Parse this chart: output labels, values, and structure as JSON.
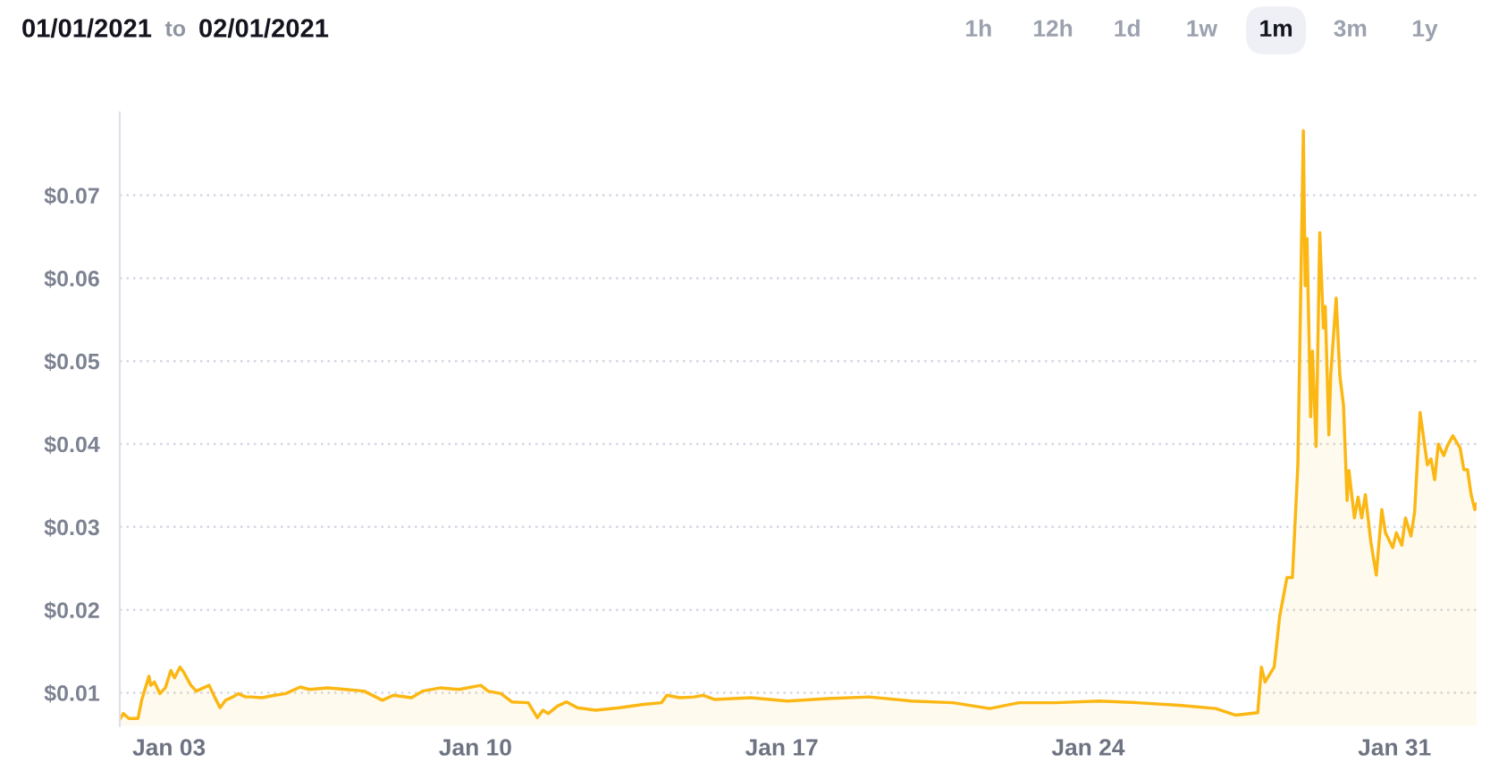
{
  "chart_data": {
    "type": "area",
    "annotations": [
      "01/01/2021",
      "to",
      "02/01/2021",
      "1h",
      "12h",
      "1d",
      "1w",
      "1m",
      "3m",
      "1y"
    ],
    "x": [
      "2021-01-01T21:00",
      "2021-01-01T23:00",
      "2021-01-02T02:00",
      "2021-01-02T07:00",
      "2021-01-02T09:00",
      "2021-01-02T13:00",
      "2021-01-02T14:00",
      "2021-01-02T16:00",
      "2021-01-02T19:00",
      "2021-01-02T22:00",
      "2021-01-03T01:00",
      "2021-01-03T03:00",
      "2021-01-03T06:00",
      "2021-01-03T08:00",
      "2021-01-03T12:00",
      "2021-01-03T15:00",
      "2021-01-03T19:00",
      "2021-01-03T22:00",
      "2021-01-04T01:00",
      "2021-01-04T04:00",
      "2021-01-04T07:00",
      "2021-01-04T11:00",
      "2021-01-04T14:00",
      "2021-01-04T18:00",
      "2021-01-04T21:00",
      "2021-01-05T03:00",
      "2021-01-05T10:00",
      "2021-01-05T16:00",
      "2021-01-06T00:00",
      "2021-01-06T05:00",
      "2021-01-06T15:00",
      "2021-01-07T01:00",
      "2021-01-07T11:00",
      "2021-01-07T21:00",
      "2021-01-08T03:00",
      "2021-01-08T13:00",
      "2021-01-08T19:00",
      "2021-01-09T05:00",
      "2021-01-09T15:00",
      "2021-01-10T03:00",
      "2021-01-10T07:00",
      "2021-01-10T14:00",
      "2021-01-10T20:00",
      "2021-01-11T05:00",
      "2021-01-11T10:00",
      "2021-01-11T13:00",
      "2021-01-11T16:00",
      "2021-01-11T21:00",
      "2021-01-12T02:00",
      "2021-01-12T08:00",
      "2021-01-12T18:00",
      "2021-01-13T07:00",
      "2021-01-13T20:00",
      "2021-01-14T06:00",
      "2021-01-14T09:00",
      "2021-01-14T16:00",
      "2021-01-15T00:00",
      "2021-01-15T05:00",
      "2021-01-15T11:00",
      "2021-01-16T07:00",
      "2021-01-17T03:00",
      "2021-01-18T01:00",
      "2021-01-19T00:00",
      "2021-01-19T23:00",
      "2021-01-20T22:00",
      "2021-01-21T18:00",
      "2021-01-22T10:00",
      "2021-01-23T06:00",
      "2021-01-24T06:00",
      "2021-01-25T03:00",
      "2021-01-26T02:00",
      "2021-01-26T22:00",
      "2021-01-27T09:00",
      "2021-01-27T21:00",
      "2021-01-27T23:00",
      "2021-01-28T01:00",
      "2021-01-28T06:00",
      "2021-01-28T09:00",
      "2021-01-28T13:00",
      "2021-01-28T16:00",
      "2021-01-28T19:00",
      "2021-01-28T22:00",
      "2021-01-28T23:00",
      "2021-01-29T00:00",
      "2021-01-29T02:00",
      "2021-01-29T03:00",
      "2021-01-29T05:00",
      "2021-01-29T07:00",
      "2021-01-29T09:00",
      "2021-01-29T10:00",
      "2021-01-29T12:00",
      "2021-01-29T13:00",
      "2021-01-29T16:00",
      "2021-01-29T18:00",
      "2021-01-29T20:00",
      "2021-01-29T22:00",
      "2021-01-29T23:00",
      "2021-01-30T02:00",
      "2021-01-30T04:00",
      "2021-01-30T06:00",
      "2021-01-30T08:00",
      "2021-01-30T11:00",
      "2021-01-30T14:00",
      "2021-01-30T17:00",
      "2021-01-30T19:00",
      "2021-01-30T23:00",
      "2021-01-31T01:00",
      "2021-01-31T04:00",
      "2021-01-31T06:00",
      "2021-01-31T09:00",
      "2021-01-31T11:00",
      "2021-01-31T14:00",
      "2021-01-31T18:00",
      "2021-01-31T20:00",
      "2021-01-31T22:00",
      "2021-02-01T00:00",
      "2021-02-01T03:00",
      "2021-02-01T05:00",
      "2021-02-01T08:00",
      "2021-02-01T12:00",
      "2021-02-01T14:00",
      "2021-02-01T16:00",
      "2021-02-01T18:00",
      "2021-02-01T20:00",
      "2021-02-01T21:00"
    ],
    "series": [
      {
        "color": "#fbb713",
        "values": [
          0.0068,
          0.0075,
          0.0069,
          0.0069,
          0.0091,
          0.012,
          0.0109,
          0.0113,
          0.0099,
          0.0106,
          0.0127,
          0.0118,
          0.0131,
          0.0125,
          0.0109,
          0.0102,
          0.0106,
          0.0109,
          0.0095,
          0.0082,
          0.0091,
          0.0095,
          0.0099,
          0.0095,
          0.0095,
          0.0094,
          0.0097,
          0.0099,
          0.0107,
          0.0104,
          0.0106,
          0.0104,
          0.0102,
          0.0091,
          0.0097,
          0.0094,
          0.0102,
          0.0106,
          0.0104,
          0.0109,
          0.0102,
          0.0099,
          0.0089,
          0.0088,
          0.007,
          0.0079,
          0.0075,
          0.0084,
          0.0089,
          0.0082,
          0.0079,
          0.0082,
          0.0086,
          0.0088,
          0.0097,
          0.0094,
          0.0095,
          0.0097,
          0.0092,
          0.0094,
          0.009,
          0.0093,
          0.0095,
          0.009,
          0.0088,
          0.0081,
          0.0088,
          0.0088,
          0.009,
          0.0088,
          0.0085,
          0.0081,
          0.0073,
          0.0076,
          0.0131,
          0.0113,
          0.0131,
          0.0192,
          0.0239,
          0.0239,
          0.0375,
          0.0778,
          0.0591,
          0.0648,
          0.0433,
          0.0512,
          0.0397,
          0.0655,
          0.054,
          0.0566,
          0.0411,
          0.0483,
          0.0576,
          0.0483,
          0.0447,
          0.0332,
          0.0368,
          0.0311,
          0.0336,
          0.0311,
          0.0339,
          0.0282,
          0.0242,
          0.0321,
          0.0293,
          0.0275,
          0.0293,
          0.0278,
          0.0311,
          0.0289,
          0.0318,
          0.0438,
          0.0375,
          0.0382,
          0.0357,
          0.04,
          0.0386,
          0.0398,
          0.041,
          0.0395,
          0.0369,
          0.0369,
          0.0339,
          0.0321,
          0.0328
        ]
      }
    ],
    "xlim": [
      "2021-01-01T21:00",
      "2021-02-01T21:00"
    ],
    "xticks": [
      {
        "value": "2021-01-03",
        "label": "Jan 03"
      },
      {
        "value": "2021-01-10",
        "label": "Jan 10"
      },
      {
        "value": "2021-01-17",
        "label": "Jan 17"
      },
      {
        "value": "2021-01-24",
        "label": "Jan 24"
      },
      {
        "value": "2021-01-31",
        "label": "Jan 31"
      }
    ],
    "ylim": [
      0.006,
      0.08
    ],
    "yticks": [
      {
        "value": 0.01,
        "label": "$0.01"
      },
      {
        "value": 0.02,
        "label": "$0.02"
      },
      {
        "value": 0.03,
        "label": "$0.03"
      },
      {
        "value": 0.04,
        "label": "$0.04"
      },
      {
        "value": 0.05,
        "label": "$0.05"
      },
      {
        "value": 0.06,
        "label": "$0.06"
      },
      {
        "value": 0.07,
        "label": "$0.07"
      }
    ],
    "grid": "y"
  }
}
